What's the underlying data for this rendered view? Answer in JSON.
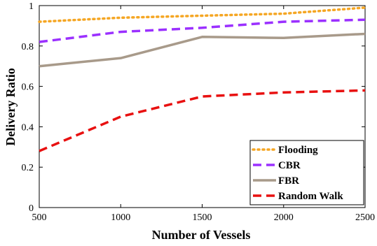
{
  "chart_data": {
    "type": "line",
    "title": "",
    "xlabel": "Number of Vessels",
    "ylabel": "Delivery Ratio",
    "x": [
      500,
      1000,
      1500,
      2000,
      2500
    ],
    "xlim": [
      500,
      2500
    ],
    "ylim": [
      0,
      1
    ],
    "xticks": [
      "500",
      "1000",
      "1500",
      "2000",
      "2500"
    ],
    "yticks": [
      "0",
      "0.2",
      "0.4",
      "0.6",
      "0.8",
      "1"
    ],
    "grid": false,
    "legend_position": "bottom-right",
    "series": [
      {
        "name": "Flooding",
        "values": [
          0.92,
          0.94,
          0.95,
          0.96,
          0.99
        ],
        "color": "#f5a623",
        "style": "dotted"
      },
      {
        "name": "CBR",
        "values": [
          0.82,
          0.87,
          0.89,
          0.92,
          0.93
        ],
        "color": "#9b30ff",
        "style": "dashed"
      },
      {
        "name": "FBR",
        "values": [
          0.7,
          0.74,
          0.845,
          0.84,
          0.86
        ],
        "color": "#a89a8a",
        "style": "solid"
      },
      {
        "name": "Random Walk",
        "values": [
          0.28,
          0.45,
          0.55,
          0.57,
          0.58
        ],
        "color": "#e81010",
        "style": "dashed"
      }
    ]
  }
}
